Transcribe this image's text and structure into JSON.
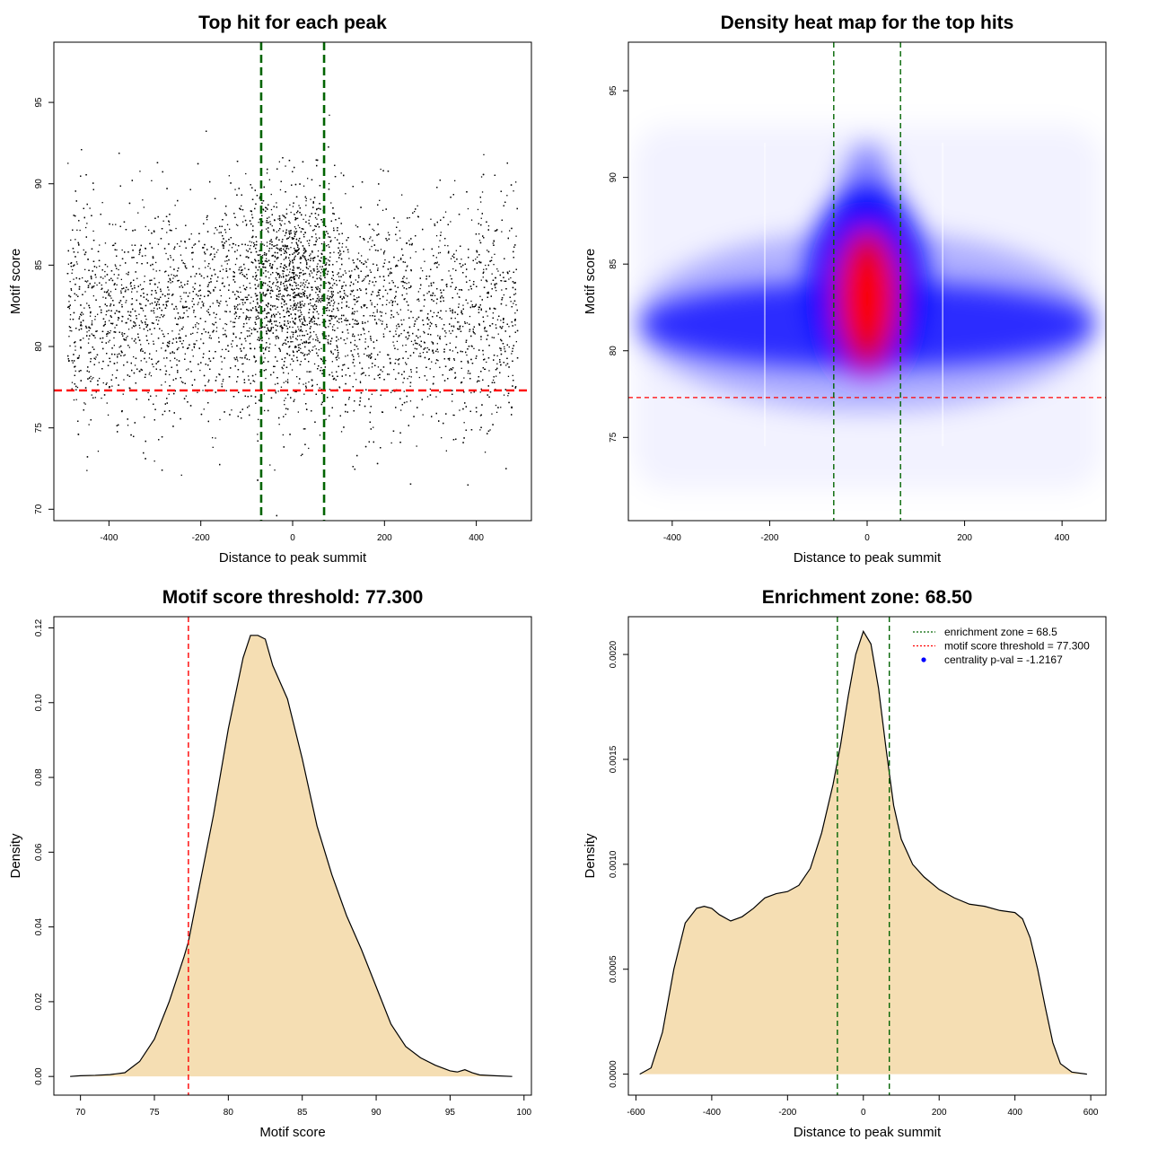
{
  "chart_data": [
    {
      "type": "scatter",
      "title": "Top hit for each peak",
      "xlabel": "Distance to peak summit",
      "ylabel": "Motif score",
      "xlim": [
        -520,
        520
      ],
      "ylim": [
        69.3,
        98.7
      ],
      "xticks": [
        -400,
        -200,
        0,
        200,
        400
      ],
      "yticks": [
        70,
        75,
        80,
        85,
        90,
        95
      ],
      "points_summary": {
        "count_approx": 9000,
        "x_range": [
          -490,
          490
        ],
        "background": {
          "y_mean": 82,
          "y_sd": 3.4
        },
        "central_cluster": {
          "x_center": 0,
          "x_sd": 60,
          "y_mean": 84,
          "y_sd": 3.0
        }
      },
      "hlines": [
        {
          "y": 77.3,
          "color": "#ff0000",
          "style": "dashed"
        }
      ],
      "vlines": [
        {
          "x": -68.5,
          "color": "#006400",
          "style": "dashed"
        },
        {
          "x": 68.5,
          "color": "#006400",
          "style": "dashed"
        }
      ]
    },
    {
      "type": "heatmap",
      "title": "Density heat map for the top hits",
      "xlabel": "Distance to peak summit",
      "ylabel": "Motif score",
      "xlim": [
        -490,
        490
      ],
      "ylim": [
        70.2,
        97.8
      ],
      "xticks": [
        -400,
        -200,
        0,
        200,
        400
      ],
      "yticks": [
        75,
        80,
        85,
        90,
        95
      ],
      "colors": [
        "#ffffff",
        "#0000ff",
        "#ff0000"
      ],
      "density_peak": {
        "x": 0,
        "y": 83
      },
      "hlines": [
        {
          "y": 77.3,
          "color": "#ff0000",
          "style": "dashed"
        }
      ],
      "vlines": [
        {
          "x": -68.5,
          "color": "#006400",
          "style": "dashed"
        },
        {
          "x": 68.5,
          "color": "#006400",
          "style": "dashed"
        }
      ]
    },
    {
      "type": "area",
      "title": "Motif score threshold: 77.300",
      "xlabel": "Motif score",
      "ylabel": "Density",
      "xlim": [
        68.2,
        100.5
      ],
      "ylim": [
        -0.005,
        0.123
      ],
      "xticks": [
        70,
        75,
        80,
        85,
        90,
        95,
        100
      ],
      "yticks": [
        0.0,
        0.02,
        0.04,
        0.06,
        0.08,
        0.1,
        0.12
      ],
      "ytick_labels": [
        "0.00",
        "0.02",
        "0.04",
        "0.06",
        "0.08",
        "0.10",
        "0.12"
      ],
      "fill": "#f5deb3",
      "x": [
        69.3,
        70,
        71,
        72,
        73,
        74,
        75,
        76,
        77,
        77.3,
        78,
        79,
        80,
        81,
        81.5,
        82,
        82.5,
        83,
        84,
        85,
        86,
        87,
        88,
        89,
        90,
        91,
        92,
        93,
        94,
        95,
        95.5,
        96,
        96.5,
        97,
        98,
        99.2
      ],
      "values": [
        0.0,
        0.0002,
        0.0003,
        0.0005,
        0.001,
        0.004,
        0.01,
        0.02,
        0.032,
        0.036,
        0.05,
        0.07,
        0.093,
        0.112,
        0.118,
        0.118,
        0.117,
        0.11,
        0.101,
        0.085,
        0.067,
        0.054,
        0.043,
        0.034,
        0.024,
        0.014,
        0.008,
        0.005,
        0.003,
        0.0015,
        0.0012,
        0.0018,
        0.001,
        0.0004,
        0.0002,
        0.0
      ],
      "vlines": [
        {
          "x": 77.3,
          "color": "#ff0000",
          "style": "dashed"
        }
      ]
    },
    {
      "type": "area",
      "title": "Enrichment zone: 68.50",
      "xlabel": "Distance to peak summit",
      "ylabel": "Density",
      "xlim": [
        -620,
        640
      ],
      "ylim": [
        -0.0001,
        0.00218
      ],
      "xticks": [
        -600,
        -400,
        -200,
        0,
        200,
        400,
        600
      ],
      "yticks": [
        0.0,
        0.0005,
        0.001,
        0.0015,
        0.002
      ],
      "ytick_labels": [
        "0.0000",
        "0.0005",
        "0.0010",
        "0.0015",
        "0.0020"
      ],
      "fill": "#f5deb3",
      "x": [
        -590,
        -560,
        -530,
        -500,
        -470,
        -440,
        -420,
        -400,
        -380,
        -350,
        -320,
        -290,
        -260,
        -230,
        -200,
        -170,
        -140,
        -110,
        -80,
        -60,
        -40,
        -20,
        0,
        20,
        40,
        60,
        80,
        100,
        130,
        160,
        200,
        240,
        280,
        320,
        360,
        400,
        420,
        440,
        460,
        480,
        500,
        520,
        550,
        590
      ],
      "values": [
        0.0,
        3e-05,
        0.0002,
        0.0005,
        0.00072,
        0.00079,
        0.0008,
        0.00079,
        0.00076,
        0.00073,
        0.00075,
        0.00079,
        0.00084,
        0.00086,
        0.00087,
        0.0009,
        0.00098,
        0.00115,
        0.00138,
        0.00157,
        0.0018,
        0.002,
        0.00211,
        0.00205,
        0.00184,
        0.00155,
        0.00128,
        0.00112,
        0.001,
        0.00094,
        0.00088,
        0.00084,
        0.00081,
        0.0008,
        0.00078,
        0.00077,
        0.00074,
        0.00065,
        0.0005,
        0.00032,
        0.00015,
        5e-05,
        1e-05,
        0.0
      ],
      "vlines": [
        {
          "x": -68.5,
          "color": "#006400",
          "style": "dashed"
        },
        {
          "x": 68.5,
          "color": "#006400",
          "style": "dashed"
        }
      ],
      "legend": {
        "position": "top-right",
        "entries": [
          {
            "label": "enrichment zone = 68.5",
            "color": "#006400",
            "symbol": "line-dotted"
          },
          {
            "label": "motif score threshold = 77.300",
            "color": "#ff0000",
            "symbol": "line-dotted"
          },
          {
            "label": "centrality p-val = -1.2167",
            "color": "#0000ff",
            "symbol": "point"
          }
        ]
      }
    }
  ]
}
